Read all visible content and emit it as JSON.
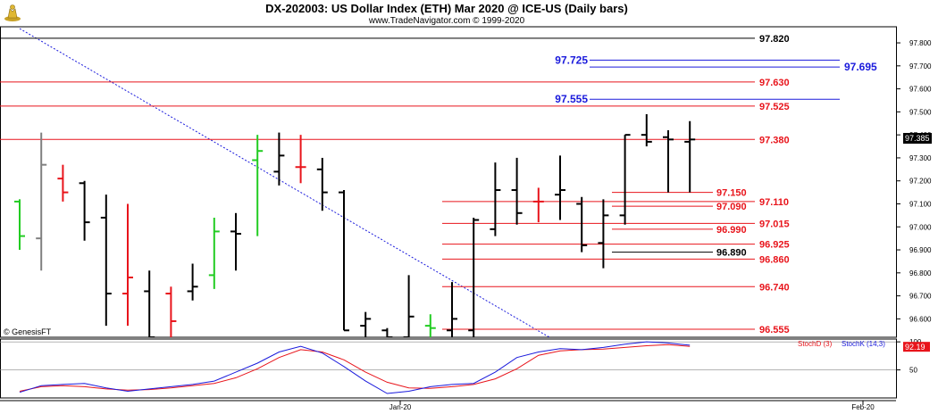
{
  "header": {
    "title": "DX-202003:  US Dollar Index (ETH) Mar 2020 @ ICE-US  (Daily bars)",
    "subtitle": "www.TradeNavigator.com © 1999-2020"
  },
  "watermark": "© GenesisFT",
  "colors": {
    "up": "#22cc22",
    "down": "#e8141b",
    "neutral": "#000000",
    "blue": "#1a1adc",
    "stochK": "#1a1adc",
    "stochD": "#e8141b",
    "grid": "#c8c8c8"
  },
  "chart_data": [
    {
      "type": "bar",
      "subtype": "ohlc",
      "ylim": [
        96.52,
        97.87
      ],
      "y_ticks": [
        "97.800",
        "97.700",
        "97.600",
        "97.500",
        "97.400",
        "97.300",
        "97.200",
        "97.100",
        "97.000",
        "96.900",
        "96.800",
        "96.700",
        "96.600"
      ],
      "x_tick_labels": [
        "Jan-20",
        "Feb-20"
      ],
      "last_price_label": "97.385",
      "bars": [
        {
          "o": 97.11,
          "h": 97.12,
          "l": 96.9,
          "c": 96.96,
          "color": "green"
        },
        {
          "o": 96.95,
          "h": 97.41,
          "l": 96.81,
          "c": 97.27,
          "color": "gray"
        },
        {
          "o": 97.21,
          "h": 97.27,
          "l": 97.11,
          "c": 97.15,
          "color": "red"
        },
        {
          "o": 97.19,
          "h": 97.2,
          "l": 96.94,
          "c": 97.02,
          "color": "black"
        },
        {
          "o": 97.04,
          "h": 97.14,
          "l": 96.57,
          "c": 96.71,
          "color": "black"
        },
        {
          "o": 96.71,
          "h": 97.1,
          "l": 96.57,
          "c": 96.78,
          "color": "red"
        },
        {
          "o": 96.72,
          "h": 96.81,
          "l": 96.52,
          "c": 96.52,
          "color": "black"
        },
        {
          "o": 96.71,
          "h": 96.74,
          "l": 96.52,
          "c": 96.59,
          "color": "red"
        },
        {
          "o": 96.72,
          "h": 96.84,
          "l": 96.68,
          "c": 96.74,
          "color": "black"
        },
        {
          "o": 96.79,
          "h": 97.04,
          "l": 96.73,
          "c": 96.98,
          "color": "green"
        },
        {
          "o": 96.98,
          "h": 97.06,
          "l": 96.81,
          "c": 96.97,
          "color": "black"
        },
        {
          "o": 97.29,
          "h": 97.4,
          "l": 96.96,
          "c": 97.33,
          "color": "green"
        },
        {
          "o": 97.24,
          "h": 97.41,
          "l": 97.18,
          "c": 97.31,
          "color": "black"
        },
        {
          "o": 97.26,
          "h": 97.4,
          "l": 97.19,
          "c": 97.26,
          "color": "red"
        },
        {
          "o": 97.25,
          "h": 97.3,
          "l": 97.07,
          "c": 97.15,
          "color": "black"
        },
        {
          "o": 97.15,
          "h": 97.16,
          "l": 96.55,
          "c": 96.55,
          "color": "black"
        },
        {
          "o": 96.57,
          "h": 96.63,
          "l": 96.52,
          "c": 96.6,
          "color": "black"
        },
        {
          "o": 96.55,
          "h": 96.56,
          "l": 96.52,
          "c": 96.52,
          "color": "black"
        },
        {
          "o": 96.52,
          "h": 96.79,
          "l": 96.52,
          "c": 96.61,
          "color": "black"
        },
        {
          "o": 96.57,
          "h": 96.62,
          "l": 96.52,
          "c": 96.56,
          "color": "green"
        },
        {
          "o": 96.55,
          "h": 96.76,
          "l": 96.52,
          "c": 96.6,
          "color": "black"
        },
        {
          "o": 96.55,
          "h": 97.04,
          "l": 96.52,
          "c": 97.03,
          "color": "black"
        },
        {
          "o": 96.99,
          "h": 97.28,
          "l": 96.96,
          "c": 97.16,
          "color": "black"
        },
        {
          "o": 97.16,
          "h": 97.3,
          "l": 97.01,
          "c": 97.06,
          "color": "black"
        },
        {
          "o": 97.11,
          "h": 97.17,
          "l": 97.02,
          "c": 97.11,
          "color": "red"
        },
        {
          "o": 97.14,
          "h": 97.31,
          "l": 97.03,
          "c": 97.16,
          "color": "black"
        },
        {
          "o": 97.1,
          "h": 97.13,
          "l": 96.89,
          "c": 96.92,
          "color": "black"
        },
        {
          "o": 96.93,
          "h": 97.12,
          "l": 96.82,
          "c": 97.05,
          "color": "black"
        },
        {
          "o": 97.05,
          "h": 97.4,
          "l": 97.01,
          "c": 97.4,
          "color": "black"
        },
        {
          "o": 97.4,
          "h": 97.49,
          "l": 97.35,
          "c": 97.37,
          "color": "black"
        },
        {
          "o": 97.39,
          "h": 97.42,
          "l": 97.15,
          "c": 97.38,
          "color": "black"
        },
        {
          "o": 97.37,
          "h": 97.46,
          "l": 97.15,
          "c": 97.38,
          "color": "black"
        }
      ],
      "h_lines": [
        {
          "value": 97.82,
          "label": "97.820",
          "color": "black"
        },
        {
          "value": 97.725,
          "label": "97.725",
          "color": "blue"
        },
        {
          "value": 97.695,
          "label": "97.695",
          "color": "blue"
        },
        {
          "value": 97.63,
          "label": "97.630",
          "color": "red"
        },
        {
          "value": 97.555,
          "label": "97.555",
          "color": "blue"
        },
        {
          "value": 97.525,
          "label": "97.525",
          "color": "red"
        },
        {
          "value": 97.38,
          "label": "97.380",
          "color": "red"
        },
        {
          "value": 97.15,
          "label": "97.150",
          "color": "red"
        },
        {
          "value": 97.11,
          "label": "97.110",
          "color": "red"
        },
        {
          "value": 97.09,
          "label": "97.090",
          "color": "red"
        },
        {
          "value": 97.015,
          "label": "97.015",
          "color": "red"
        },
        {
          "value": 96.99,
          "label": "96.990",
          "color": "red"
        },
        {
          "value": 96.925,
          "label": "96.925",
          "color": "red"
        },
        {
          "value": 96.89,
          "label": "96.890",
          "color": "black"
        },
        {
          "value": 96.86,
          "label": "96.860",
          "color": "red"
        },
        {
          "value": 96.74,
          "label": "96.740",
          "color": "red"
        },
        {
          "value": 96.555,
          "label": "96.555",
          "color": "red"
        }
      ]
    },
    {
      "type": "line",
      "ylim": [
        0,
        105
      ],
      "y_ticks": [
        "100",
        "50"
      ],
      "last_value_label": "92.19",
      "series": [
        {
          "name": "StochD (3)",
          "color": "red",
          "values": [
            12,
            20,
            22,
            20,
            16,
            14,
            15,
            18,
            22,
            26,
            36,
            52,
            72,
            86,
            82,
            68,
            46,
            28,
            18,
            17,
            20,
            24,
            34,
            52,
            76,
            84,
            86,
            87,
            90,
            93,
            95,
            92
          ]
        },
        {
          "name": "StochK (14,3)",
          "color": "blue",
          "values": [
            10,
            22,
            24,
            26,
            18,
            12,
            16,
            20,
            24,
            30,
            46,
            62,
            82,
            92,
            80,
            56,
            30,
            8,
            12,
            20,
            24,
            26,
            46,
            72,
            82,
            88,
            86,
            90,
            96,
            100,
            98,
            94
          ]
        }
      ]
    }
  ]
}
